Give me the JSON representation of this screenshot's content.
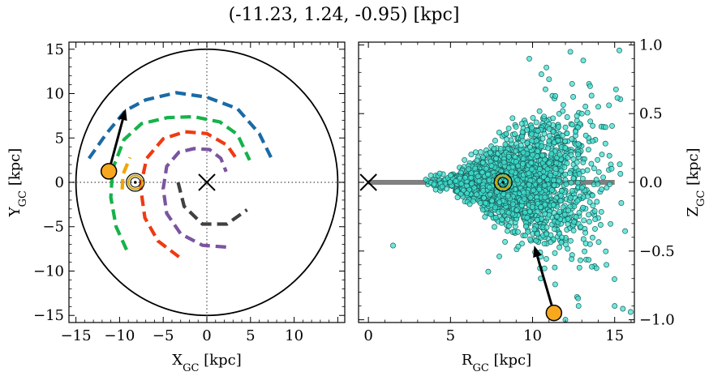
{
  "title": "(-11.23, 1.24, -0.95) [kpc]",
  "chart_data": [
    {
      "type": "line",
      "panel": "left",
      "xlabel": "X",
      "xlabel_sub": "GC",
      "xlabel_unit": " [kpc]",
      "ylabel": "Y",
      "ylabel_sub": "GC",
      "ylabel_unit": " [kpc]",
      "xlim": [
        -15.8,
        15.8
      ],
      "ylim": [
        -15.8,
        15.8
      ],
      "xticks": [
        -15,
        -10,
        -5,
        0,
        5,
        10,
        15
      ],
      "xtick_labels": [
        "−15",
        "−10",
        "−5",
        "0",
        "5",
        "10",
        ""
      ],
      "yticks": [
        -15,
        -10,
        -5,
        0,
        5,
        10,
        15
      ],
      "ytick_labels": [
        "−15",
        "−10",
        "−5",
        "0",
        "5",
        "10",
        "15"
      ],
      "grid": false,
      "boundary_circle_radius": 15,
      "galactic_center": [
        0,
        0
      ],
      "sun_position": [
        -8.2,
        0
      ],
      "star_position": [
        -11.23,
        1.24
      ],
      "arrow_to": [
        -9.3,
        8.3
      ],
      "series": [
        {
          "color": "#1a6aa6",
          "values": [
            [
              -13.5,
              2.7
            ],
            [
              -11.5,
              5.5
            ],
            [
              -9.3,
              8.1
            ],
            [
              -7.0,
              9.3
            ],
            [
              -3.5,
              10.1
            ],
            [
              0.0,
              9.6
            ],
            [
              3.5,
              8.3
            ],
            [
              6.0,
              5.5
            ],
            [
              7.5,
              2.5
            ]
          ]
        },
        {
          "color": "#16b24a",
          "values": [
            [
              -9.2,
              -7.6
            ],
            [
              -10.4,
              -5.0
            ],
            [
              -11.0,
              -1.7
            ],
            [
              -10.8,
              1.5
            ],
            [
              -9.5,
              4.8
            ],
            [
              -7.5,
              6.6
            ],
            [
              -4.5,
              7.3
            ],
            [
              -1.5,
              7.4
            ],
            [
              1.5,
              6.8
            ],
            [
              3.5,
              5.4
            ],
            [
              4.9,
              2.5
            ]
          ]
        },
        {
          "color": "#f0a500",
          "values": [
            [
              -9.7,
              -0.8
            ],
            [
              -9.6,
              0.9
            ],
            [
              -8.8,
              2.8
            ]
          ]
        },
        {
          "color": "#ef3a12",
          "values": [
            [
              -3.2,
              -8.4
            ],
            [
              -5.6,
              -6.6
            ],
            [
              -7.1,
              -4.0
            ],
            [
              -7.6,
              -0.5
            ],
            [
              -6.9,
              2.7
            ],
            [
              -5.0,
              4.9
            ],
            [
              -2.5,
              5.7
            ],
            [
              0.0,
              5.5
            ],
            [
              2.3,
              4.2
            ],
            [
              3.5,
              2.5
            ]
          ]
        },
        {
          "color": "#7a559f",
          "values": [
            [
              2.2,
              -7.3
            ],
            [
              -0.5,
              -7.1
            ],
            [
              -3.0,
              -5.8
            ],
            [
              -4.6,
              -3.5
            ],
            [
              -5.0,
              -0.7
            ],
            [
              -4.6,
              1.8
            ],
            [
              -3.2,
              3.4
            ],
            [
              -1.5,
              3.8
            ],
            [
              0.3,
              3.7
            ],
            [
              1.6,
              2.7
            ],
            [
              2.2,
              1.2
            ]
          ]
        },
        {
          "color": "#404040",
          "values": [
            [
              -3.3,
              0.0
            ],
            [
              -2.6,
              -2.7
            ],
            [
              -0.5,
              -4.7
            ],
            [
              2.3,
              -4.7
            ],
            [
              4.6,
              -3.1
            ]
          ]
        }
      ]
    },
    {
      "type": "scatter",
      "panel": "right",
      "xlabel": "R",
      "xlabel_sub": "GC",
      "xlabel_unit": " [kpc]",
      "ylabel": "Z",
      "ylabel_sub": "GC",
      "ylabel_unit": " [kpc]",
      "xlim": [
        -0.6,
        16.2
      ],
      "ylim": [
        -1.02,
        1.02
      ],
      "xticks": [
        0,
        5,
        10,
        15
      ],
      "xtick_labels": [
        "0",
        "5",
        "10",
        "15"
      ],
      "yticks": [
        -1.0,
        -0.5,
        0.0,
        0.5,
        1.0
      ],
      "ytick_labels": [
        "−1.0",
        "−0.5",
        "0.0",
        "0.5",
        "1.0"
      ],
      "grid": false,
      "point_color": "#40e0d0",
      "disk_line": {
        "x": [
          0,
          15
        ],
        "y": 0
      },
      "galactic_center": [
        0,
        0
      ],
      "sun_position": [
        8.2,
        0
      ],
      "star_position": [
        11.3,
        -0.95
      ],
      "arrow_to": [
        10.1,
        -0.46
      ],
      "point_cloud_density": {
        "x_range": [
          3.5,
          16
        ],
        "center_x": 8.5,
        "spread_rule": "|Z| grows with R"
      },
      "points": [
        [
          1.5,
          -0.46
        ],
        [
          3.5,
          0.02
        ],
        [
          4.5,
          -0.03
        ],
        [
          5.0,
          0.05
        ],
        [
          6.0,
          -0.08
        ],
        [
          6.5,
          0.1
        ],
        [
          7.0,
          -0.06
        ],
        [
          7.5,
          0.12
        ],
        [
          8.0,
          0.01
        ],
        [
          8.5,
          -0.1
        ],
        [
          9.0,
          0.15
        ],
        [
          9.5,
          -0.12
        ],
        [
          10.0,
          0.2
        ],
        [
          10.5,
          -0.18
        ],
        [
          11.0,
          0.3
        ],
        [
          11.5,
          -0.25
        ],
        [
          12.0,
          0.4
        ],
        [
          12.5,
          -0.35
        ],
        [
          13.0,
          0.5
        ],
        [
          13.5,
          -0.45
        ],
        [
          14.0,
          0.55
        ],
        [
          14.5,
          -0.6
        ],
        [
          15.0,
          -0.9
        ],
        [
          15.5,
          -0.92
        ],
        [
          12.3,
          0.95
        ],
        [
          12.0,
          -1.0
        ],
        [
          11.0,
          0.75
        ],
        [
          13.5,
          0.7
        ],
        [
          9.8,
          0.9
        ],
        [
          10.5,
          -0.7
        ],
        [
          7.3,
          -0.65
        ],
        [
          12.8,
          -0.9
        ]
      ]
    }
  ]
}
